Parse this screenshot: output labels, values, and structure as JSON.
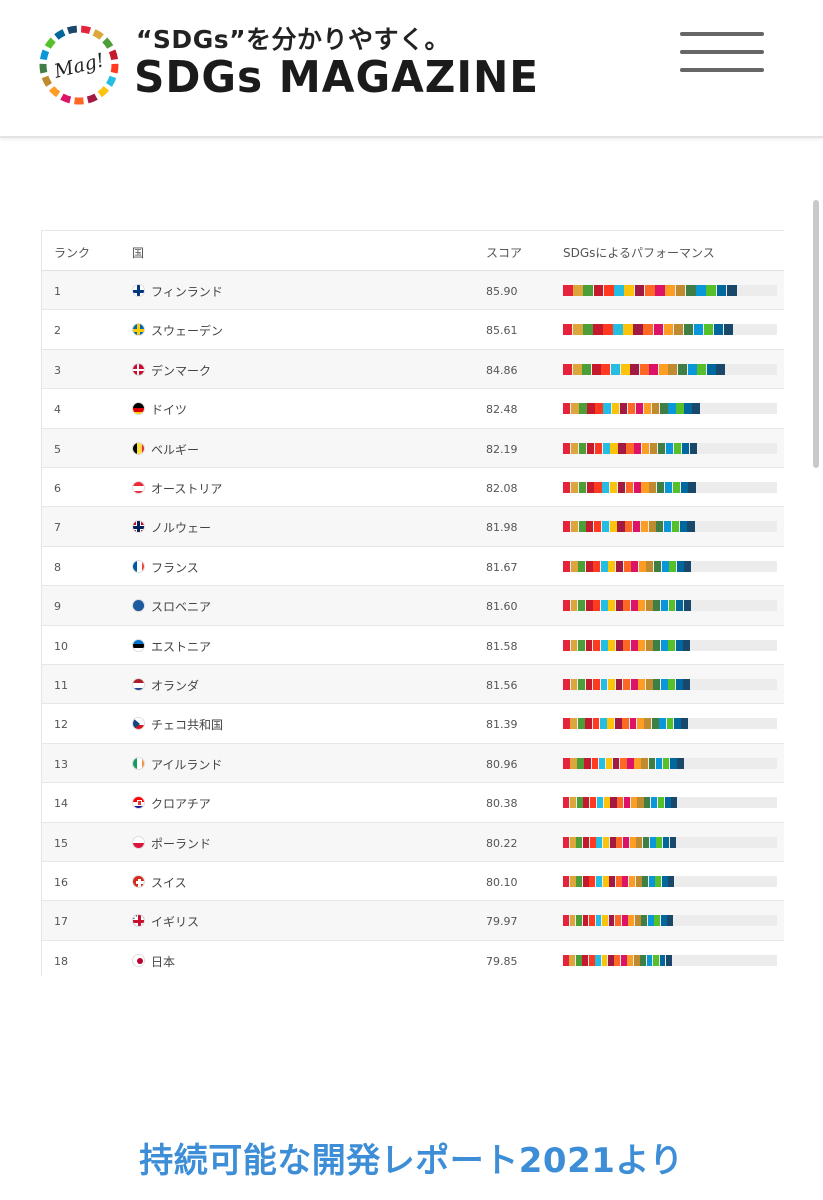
{
  "header": {
    "tagline": "“SDGs”を分かりやすく。",
    "brand": "SDGs MAGAZINE",
    "logo_text": "Mag!",
    "menu_icon": "hamburger-menu-icon"
  },
  "table": {
    "columns": [
      "ランク",
      "国",
      "スコア",
      "SDGsによるパフォーマンス"
    ],
    "rows": [
      {
        "rank": "1",
        "country": "フィンランド",
        "score": "85.90",
        "flag": "finland-flag-icon"
      },
      {
        "rank": "2",
        "country": "スウェーデン",
        "score": "85.61",
        "flag": "sweden-flag-icon"
      },
      {
        "rank": "3",
        "country": "デンマーク",
        "score": "84.86",
        "flag": "denmark-flag-icon"
      },
      {
        "rank": "4",
        "country": "ドイツ",
        "score": "82.48",
        "flag": "germany-flag-icon"
      },
      {
        "rank": "5",
        "country": "ベルギー",
        "score": "82.19",
        "flag": "belgium-flag-icon"
      },
      {
        "rank": "6",
        "country": "オーストリア",
        "score": "82.08",
        "flag": "austria-flag-icon"
      },
      {
        "rank": "7",
        "country": "ノルウェー",
        "score": "81.98",
        "flag": "norway-flag-icon"
      },
      {
        "rank": "8",
        "country": "フランス",
        "score": "81.67",
        "flag": "france-flag-icon"
      },
      {
        "rank": "9",
        "country": "スロベニア",
        "score": "81.60",
        "flag": "slovenia-flag-icon"
      },
      {
        "rank": "10",
        "country": "エストニア",
        "score": "81.58",
        "flag": "estonia-flag-icon"
      },
      {
        "rank": "11",
        "country": "オランダ",
        "score": "81.56",
        "flag": "netherlands-flag-icon"
      },
      {
        "rank": "12",
        "country": "チェコ共和国",
        "score": "81.39",
        "flag": "czech-flag-icon"
      },
      {
        "rank": "13",
        "country": "アイルランド",
        "score": "80.96",
        "flag": "ireland-flag-icon"
      },
      {
        "rank": "14",
        "country": "クロアチア",
        "score": "80.38",
        "flag": "croatia-flag-icon"
      },
      {
        "rank": "15",
        "country": "ポーランド",
        "score": "80.22",
        "flag": "poland-flag-icon"
      },
      {
        "rank": "16",
        "country": "スイス",
        "score": "80.10",
        "flag": "switzerland-flag-icon"
      },
      {
        "rank": "17",
        "country": "イギリス",
        "score": "79.97",
        "flag": "uk-flag-icon"
      },
      {
        "rank": "18",
        "country": "日本",
        "score": "79.85",
        "flag": "japan-flag-icon"
      }
    ]
  },
  "sdg_colors": [
    "#e5243b",
    "#dda63a",
    "#4c9f38",
    "#c5192d",
    "#ff3a21",
    "#26bde2",
    "#fcc30b",
    "#a21942",
    "#fd6925",
    "#dd1367",
    "#fd9d24",
    "#bf8b2e",
    "#3f7e44",
    "#0a97d9",
    "#56c02b",
    "#00689d",
    "#19486a"
  ],
  "caption": "持続可能な開発レポート2021より"
}
